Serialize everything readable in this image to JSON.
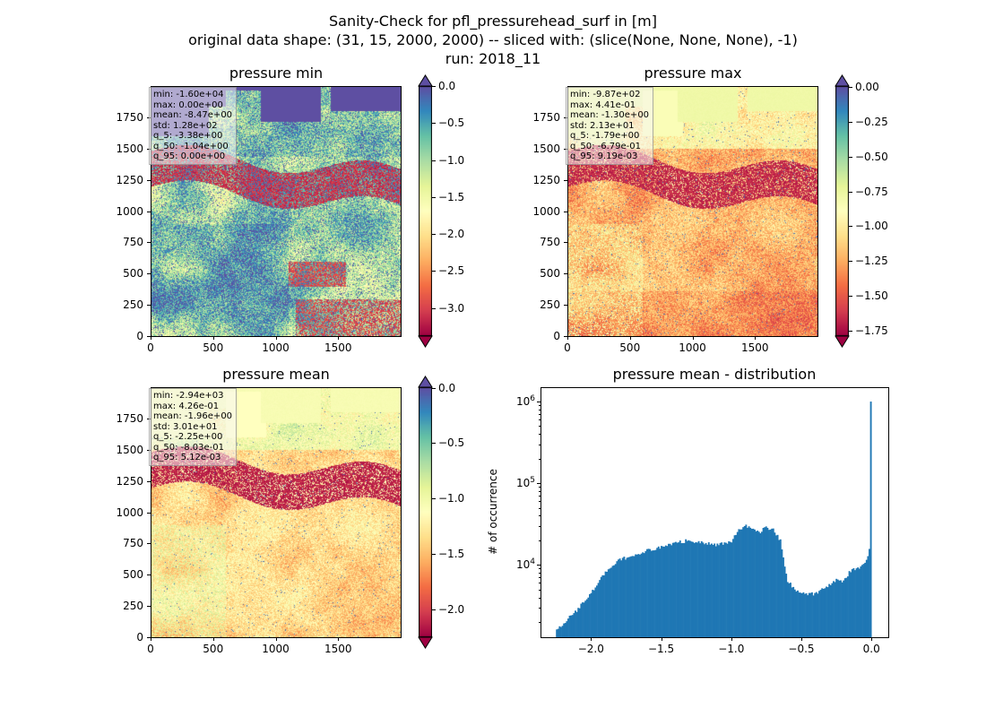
{
  "figure": {
    "title_lines": [
      "Sanity-Check for pfl_pressurehead_surf in [m]",
      "original data shape: (31, 15, 2000, 2000) -- sliced with: (slice(None, None, None), -1)",
      "run: 2018_11"
    ]
  },
  "panels": {
    "min": {
      "title": "pressure min",
      "stats": [
        "min: -1.60e+04",
        "max: 0.00e+00",
        "mean: -8.47e+00",
        "std: 1.28e+02",
        "q_5: -3.38e+00",
        "q_50: -1.04e+00",
        "q_95: 0.00e+00"
      ],
      "colorbar": {
        "cmap": "Spectral",
        "vmin": -3.38,
        "vmax": 0.0,
        "ticks": [
          "0.0",
          "−0.5",
          "−1.0",
          "−1.5",
          "−2.0",
          "−2.5",
          "−3.0"
        ],
        "extend_top_color": "#5e4fa2",
        "extend_bottom_color": "#9e0142"
      }
    },
    "max": {
      "title": "pressure max",
      "stats": [
        "min: -9.87e+02",
        "max: 4.41e-01",
        "mean: -1.30e+00",
        "std: 2.13e+01",
        "q_5: -1.79e+00",
        "q_50: -6.79e-01",
        "q_95: 9.19e-03"
      ],
      "colorbar": {
        "cmap": "Spectral",
        "vmin": -1.79,
        "vmax": 0.0092,
        "ticks": [
          "0.00",
          "−0.25",
          "−0.50",
          "−0.75",
          "−1.00",
          "−1.25",
          "−1.50",
          "−1.75"
        ],
        "extend_top_color": "#5e4fa2",
        "extend_bottom_color": "#9e0142"
      }
    },
    "mean": {
      "title": "pressure mean",
      "stats": [
        "min: -2.94e+03",
        "max: 4.26e-01",
        "mean: -1.96e+00",
        "std: 3.01e+01",
        "q_5: -2.25e+00",
        "q_50: -8.03e-01",
        "q_95: 5.12e-03"
      ],
      "colorbar": {
        "cmap": "Spectral",
        "vmin": -2.25,
        "vmax": 0.0051,
        "ticks": [
          "0.0",
          "−0.5",
          "−1.0",
          "−1.5",
          "−2.0"
        ],
        "extend_top_color": "#5e4fa2",
        "extend_bottom_color": "#9e0142"
      }
    },
    "hist": {
      "title": "pressure mean - distribution",
      "ylabel": "# of occurrence"
    }
  },
  "map_axes": {
    "x_ticks": [
      "0",
      "500",
      "1000",
      "1500"
    ],
    "y_ticks": [
      "0",
      "250",
      "500",
      "750",
      "1000",
      "1250",
      "1500",
      "1750"
    ],
    "extent": [
      0,
      2000
    ]
  },
  "chart_data": [
    {
      "type": "heatmap",
      "title": "pressure min",
      "xlim": [
        0,
        2000
      ],
      "ylim": [
        0,
        2000
      ],
      "colormap": "Spectral",
      "vmin": -3.38,
      "vmax": 0.0
    },
    {
      "type": "heatmap",
      "title": "pressure max",
      "xlim": [
        0,
        2000
      ],
      "ylim": [
        0,
        2000
      ],
      "colormap": "Spectral",
      "vmin": -1.79,
      "vmax": 0.0092
    },
    {
      "type": "heatmap",
      "title": "pressure mean",
      "xlim": [
        0,
        2000
      ],
      "ylim": [
        0,
        2000
      ],
      "colormap": "Spectral",
      "vmin": -2.25,
      "vmax": 0.0051
    },
    {
      "type": "bar",
      "title": "pressure mean - distribution",
      "ylabel": "# of occurrence",
      "yscale": "log",
      "xlim": [
        -2.36,
        0.12
      ],
      "ylim": [
        1300,
        1500000
      ],
      "x_ticks": [
        "−2.0",
        "−1.5",
        "−1.0",
        "−0.5",
        "0.0"
      ],
      "y_ticks": [
        "10^4",
        "10^5",
        "10^6"
      ],
      "color": "#1f77b4",
      "profile_x": [
        -2.25,
        -2.2,
        -2.1,
        -2.0,
        -1.9,
        -1.8,
        -1.7,
        -1.6,
        -1.5,
        -1.4,
        -1.3,
        -1.2,
        -1.1,
        -1.0,
        -0.95,
        -0.9,
        -0.85,
        -0.8,
        -0.75,
        -0.7,
        -0.65,
        -0.6,
        -0.55,
        -0.5,
        -0.45,
        -0.4,
        -0.35,
        -0.3,
        -0.25,
        -0.2,
        -0.15,
        -0.1,
        -0.05,
        -0.02,
        -0.005,
        0.0
      ],
      "profile_counts": [
        1600,
        1900,
        2800,
        4500,
        8000,
        11500,
        13000,
        15000,
        16500,
        18500,
        20000,
        18500,
        17500,
        19000,
        27000,
        30000,
        28000,
        25000,
        29000,
        27000,
        20000,
        6500,
        5000,
        4600,
        4400,
        4400,
        5200,
        5600,
        6500,
        6200,
        8500,
        9000,
        10000,
        13000,
        22000,
        1000000
      ]
    }
  ]
}
